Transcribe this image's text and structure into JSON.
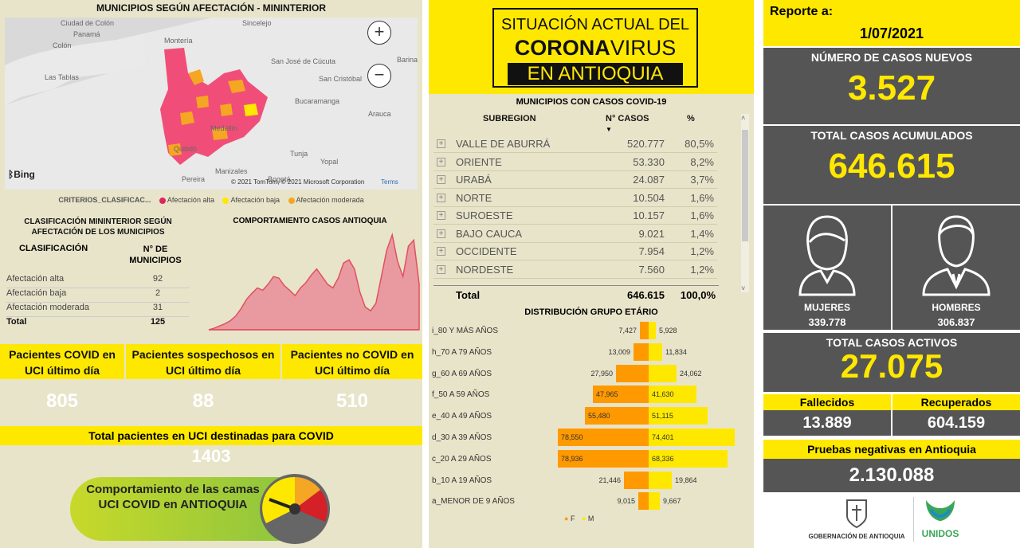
{
  "left": {
    "map_title": "MUNICIPIOS SEGÚN AFECTACIÓN - MININTERIOR",
    "map_words": [
      "Ciudad de Colón",
      "Panamá",
      "Colón",
      "Las Tablas",
      "Sincelejo",
      "Montería",
      "San José de Cúcuta",
      "Barinas",
      "San Cristóbal",
      "Bucaramanga",
      "Arauca",
      "Medellín",
      "Quibdó",
      "Tunja",
      "Yopal",
      "Pereira",
      "Manizales",
      "Bogotá"
    ],
    "map_zoom_in": "+",
    "map_zoom_out": "−",
    "bing": "Bing",
    "copyright": "© 2021 TomTom, © 2021 Microsoft Corporation",
    "terms": "Terms",
    "legend_label": "CRITERIOS_CLASIFICAC...",
    "legend_items": [
      {
        "label": "Afectación alta",
        "color": "#e0245e"
      },
      {
        "label": "Afectación baja",
        "color": "#ffe800"
      },
      {
        "label": "Afectación moderada",
        "color": "#f5a623"
      }
    ],
    "classification": {
      "title": "CLASIFICACIÓN MININTERIOR SEGÚN AFECTACIÓN DE LOS MUNICIPIOS",
      "col1": "CLASIFICACIÓN",
      "col2": "N° DE MUNICIPIOS",
      "rows": [
        {
          "label": "Afectación alta",
          "value": "92"
        },
        {
          "label": "Afectación baja",
          "value": "2"
        },
        {
          "label": "Afectación moderada",
          "value": "31"
        },
        {
          "label": "Total",
          "value": "125"
        }
      ]
    },
    "trend_title": "COMPORTAMIENTO CASOS ANTIOQUIA",
    "uci": [
      {
        "head": "Pacientes COVID en UCI último día",
        "value": "805"
      },
      {
        "head": "Pacientes sospechosos en UCI último día",
        "value": "88"
      },
      {
        "head": "Pacientes no COVID en UCI último día",
        "value": "510"
      }
    ],
    "total_uci_head": "Total pacientes en UCI destinadas para COVID",
    "total_uci_value": "1403",
    "camas_text": "Comportamiento de las camas UCI COVID en ANTIOQUIA"
  },
  "banner": {
    "line1": "SITUACIÓN ACTUAL DEL",
    "line2a": "CORONA",
    "line2b": "VIRUS",
    "line3": "EN ANTIOQUIA"
  },
  "municipios": {
    "title": "MUNICIPIOS CON CASOS COVID-19",
    "col_sub": "SUBREGION",
    "col_cases": "N° CASOS",
    "col_pct": "%",
    "rows": [
      {
        "name": "VALLE DE ABURRÁ",
        "cases": "520.777",
        "pct": "80,5%"
      },
      {
        "name": "ORIENTE",
        "cases": "53.330",
        "pct": "8,2%"
      },
      {
        "name": "URABÁ",
        "cases": "24.087",
        "pct": "3,7%"
      },
      {
        "name": "NORTE",
        "cases": "10.504",
        "pct": "1,6%"
      },
      {
        "name": "SUROESTE",
        "cases": "10.157",
        "pct": "1,6%"
      },
      {
        "name": "BAJO CAUCA",
        "cases": "9.021",
        "pct": "1,4%"
      },
      {
        "name": "OCCIDENTE",
        "cases": "7.954",
        "pct": "1,2%"
      },
      {
        "name": "NORDESTE",
        "cases": "7.560",
        "pct": "1,2%"
      }
    ],
    "total_label": "Total",
    "total_cases": "646.615",
    "total_pct": "100,0%"
  },
  "chart_data": [
    {
      "type": "area",
      "title": "COMPORTAMIENTO CASOS ANTIOQUIA",
      "x": [
        0,
        1,
        2,
        3,
        4,
        5,
        6,
        7,
        8,
        9,
        10,
        11,
        12,
        13,
        14,
        15,
        16,
        17,
        18,
        19,
        20,
        21,
        22,
        23,
        24,
        25,
        26,
        27,
        28,
        29,
        30,
        31,
        32,
        33,
        34,
        35,
        36,
        37,
        38,
        39
      ],
      "values": [
        0,
        2,
        5,
        8,
        12,
        18,
        28,
        40,
        48,
        55,
        52,
        60,
        70,
        68,
        58,
        52,
        45,
        55,
        62,
        72,
        80,
        70,
        60,
        55,
        68,
        88,
        92,
        80,
        50,
        30,
        25,
        35,
        70,
        105,
        125,
        90,
        70,
        110,
        118,
        60
      ],
      "color": "#e05060"
    },
    {
      "type": "bar",
      "title": "DISTRIBUCIÓN GRUPO ETÁRIO",
      "categories": [
        "i_80 Y MÁS AÑOS",
        "h_70 A 79 AÑOS",
        "g_60 A 69 AÑOS",
        "f_50 A 59 AÑOS",
        "e_40 A 49 AÑOS",
        "d_30 A 39 AÑOS",
        "c_20 A 29 AÑOS",
        "b_10 A 19 AÑOS",
        "a_MENOR DE 9 AÑOS"
      ],
      "series": [
        {
          "name": "F",
          "values": [
            7427,
            13009,
            27950,
            47965,
            55480,
            78550,
            78936,
            21446,
            9015
          ],
          "color": "#ff9900"
        },
        {
          "name": "M",
          "values": [
            5928,
            11834,
            24062,
            41630,
            51115,
            74401,
            68336,
            19864,
            9667
          ],
          "color": "#ffe800"
        }
      ],
      "labelsF": [
        "7,427",
        "13,009",
        "27,950",
        "47,965",
        "55,480",
        "78,550",
        "78,936",
        "21,446",
        "9,015"
      ],
      "labelsM": [
        "5,928",
        "11,834",
        "24,062",
        "41,630",
        "51,115",
        "74,401",
        "68,336",
        "19,864",
        "9,667"
      ]
    }
  ],
  "right": {
    "reporte_label": "Reporte a:",
    "reporte_date": "1/07/2021",
    "nuevos_label": "NÚMERO DE CASOS NUEVOS",
    "nuevos_value": "3.527",
    "acum_label": "TOTAL CASOS ACUMULADOS",
    "acum_value": "646.615",
    "mujeres_label": "MUJERES",
    "mujeres_value": "339.778",
    "hombres_label": "HOMBRES",
    "hombres_value": "306.837",
    "activos_label": "TOTAL CASOS ACTIVOS",
    "activos_value": "27.075",
    "fallecidos_label": "Fallecidos",
    "fallecidos_value": "13.889",
    "recuperados_label": "Recuperados",
    "recuperados_value": "604.159",
    "pruebas_label": "Pruebas negativas en Antioquia",
    "pruebas_value": "2.130.088",
    "gob_label": "GOBERNACIÓN DE ANTIOQUIA",
    "unidos_label": "UNIDOS"
  }
}
